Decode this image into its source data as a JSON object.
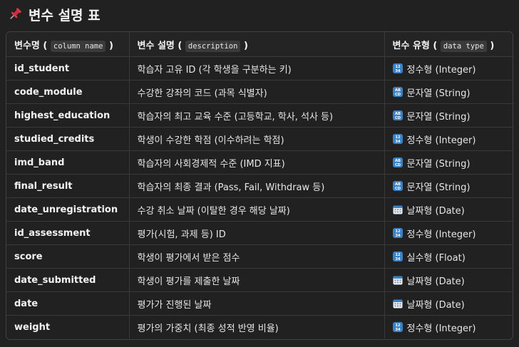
{
  "heading": {
    "icon": "pushpin-icon",
    "title": "변수 설명 표"
  },
  "columns": {
    "name": {
      "label": "변수명",
      "code": "column name"
    },
    "desc": {
      "label": "변수 설명",
      "code": "description"
    },
    "type": {
      "label": "변수 유형",
      "code": "data type"
    }
  },
  "rows": [
    {
      "name": "id_student",
      "desc": "학습자 고유 ID (각 학생을 구분하는 키)",
      "type": "정수형 (Integer)",
      "icon": "numbers-icon"
    },
    {
      "name": "code_module",
      "desc": "수강한 강좌의 코드 (과목 식별자)",
      "type": "문자열 (String)",
      "icon": "abcd-icon"
    },
    {
      "name": "highest_education",
      "desc": "학습자의 최고 교육 수준 (고등학교, 학사, 석사 등)",
      "type": "문자열 (String)",
      "icon": "abcd-icon"
    },
    {
      "name": "studied_credits",
      "desc": "학생이 수강한 학점 (이수하려는 학점)",
      "type": "정수형 (Integer)",
      "icon": "numbers-icon"
    },
    {
      "name": "imd_band",
      "desc": "학습자의 사회경제적 수준 (IMD 지표)",
      "type": "문자열 (String)",
      "icon": "abcd-icon"
    },
    {
      "name": "final_result",
      "desc": "학습자의 최종 결과 (Pass, Fail, Withdraw 등)",
      "type": "문자열 (String)",
      "icon": "abcd-icon"
    },
    {
      "name": "date_unregistration",
      "desc": "수강 취소 날짜 (이탈한 경우 해당 날짜)",
      "type": "날짜형 (Date)",
      "icon": "calendar-icon"
    },
    {
      "name": "id_assessment",
      "desc": "평가(시험, 과제 등) ID",
      "type": "정수형 (Integer)",
      "icon": "numbers-icon"
    },
    {
      "name": "score",
      "desc": "학생이 평가에서 받은 점수",
      "type": "실수형 (Float)",
      "icon": "numbers-icon"
    },
    {
      "name": "date_submitted",
      "desc": "학생이 평가를 제출한 날짜",
      "type": "날짜형 (Date)",
      "icon": "calendar-icon"
    },
    {
      "name": "date",
      "desc": "평가가 진행된 날짜",
      "type": "날짜형 (Date)",
      "icon": "calendar-icon"
    },
    {
      "name": "weight",
      "desc": "평가의 가중치 (최종 성적 반영 비율)",
      "type": "정수형 (Integer)",
      "icon": "numbers-icon"
    }
  ]
}
